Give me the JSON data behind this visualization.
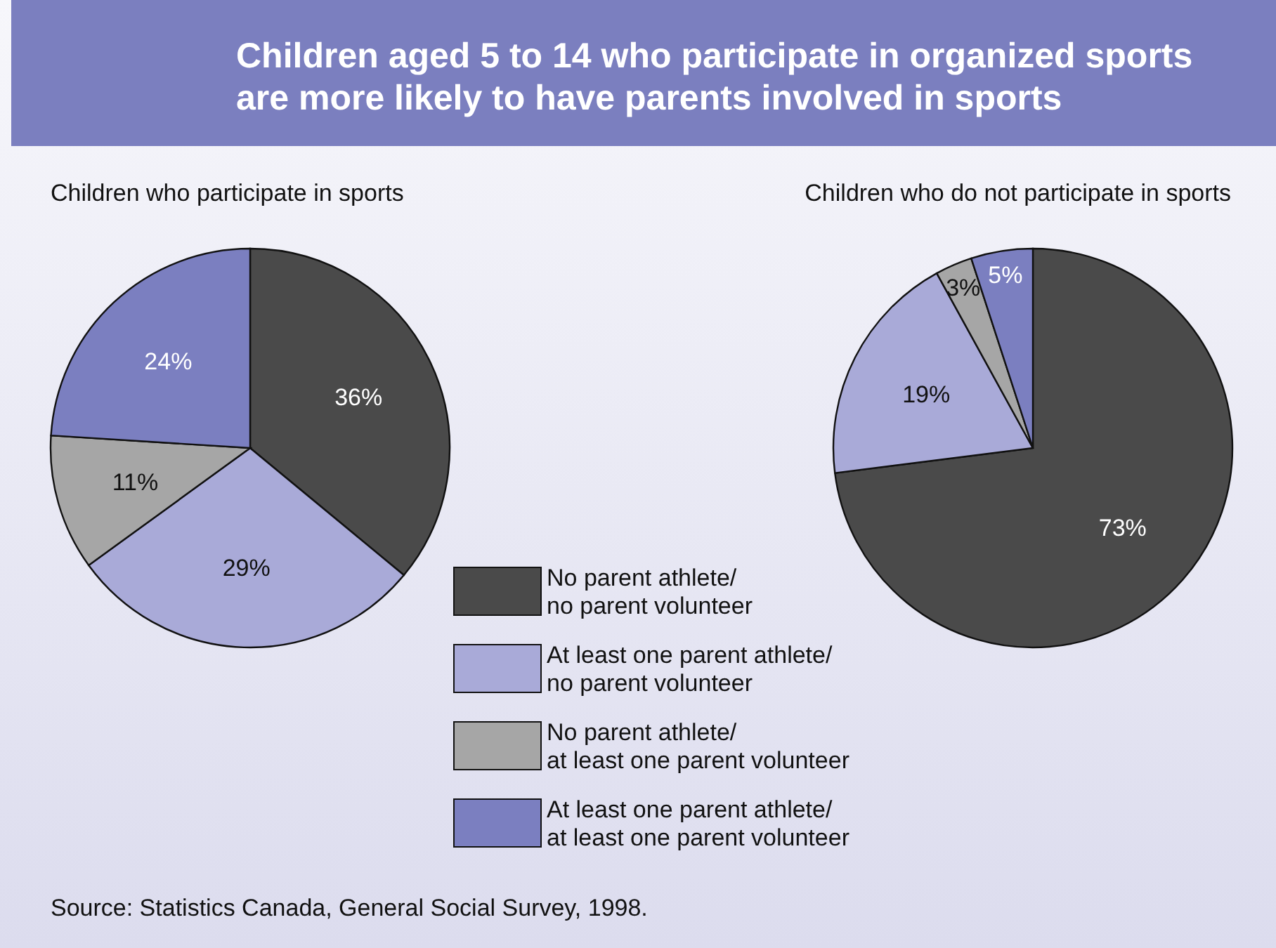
{
  "chart_data": [
    {
      "type": "pie",
      "title": "Children aged 5 to 14 who participate in organized sports\nare more likely to have parents involved in sports",
      "subtitle": "Children who participate in sports",
      "categories": [
        "No parent athlete/\nno parent volunteer",
        "At least one parent athlete/\nno parent volunteer",
        "No parent athlete/\nat least one parent volunteer",
        "At least one parent athlete/\nat least one parent volunteer"
      ],
      "values": [
        36,
        29,
        11,
        24
      ],
      "value_labels": [
        "36%",
        "29%",
        "11%",
        "24%"
      ],
      "colors": [
        "#4a4a4a",
        "#a9aad8",
        "#a6a6a6",
        "#7b7fc0"
      ],
      "legend": "bottom right",
      "annotations": [
        "Source: Statistics Canada, General Social Survey, 1998."
      ]
    },
    {
      "type": "pie",
      "title": "Children who do not participate in sports",
      "categories": [
        null,
        null,
        null,
        null
      ],
      "values": [
        73,
        19,
        3,
        5
      ],
      "value_labels": [
        "73%",
        "19%",
        "3%",
        "5%"
      ],
      "colors": [
        "#4a4a4a",
        "#a9aad8",
        "#a6a6a6",
        "#7b7fc0"
      ]
    }
  ]
}
